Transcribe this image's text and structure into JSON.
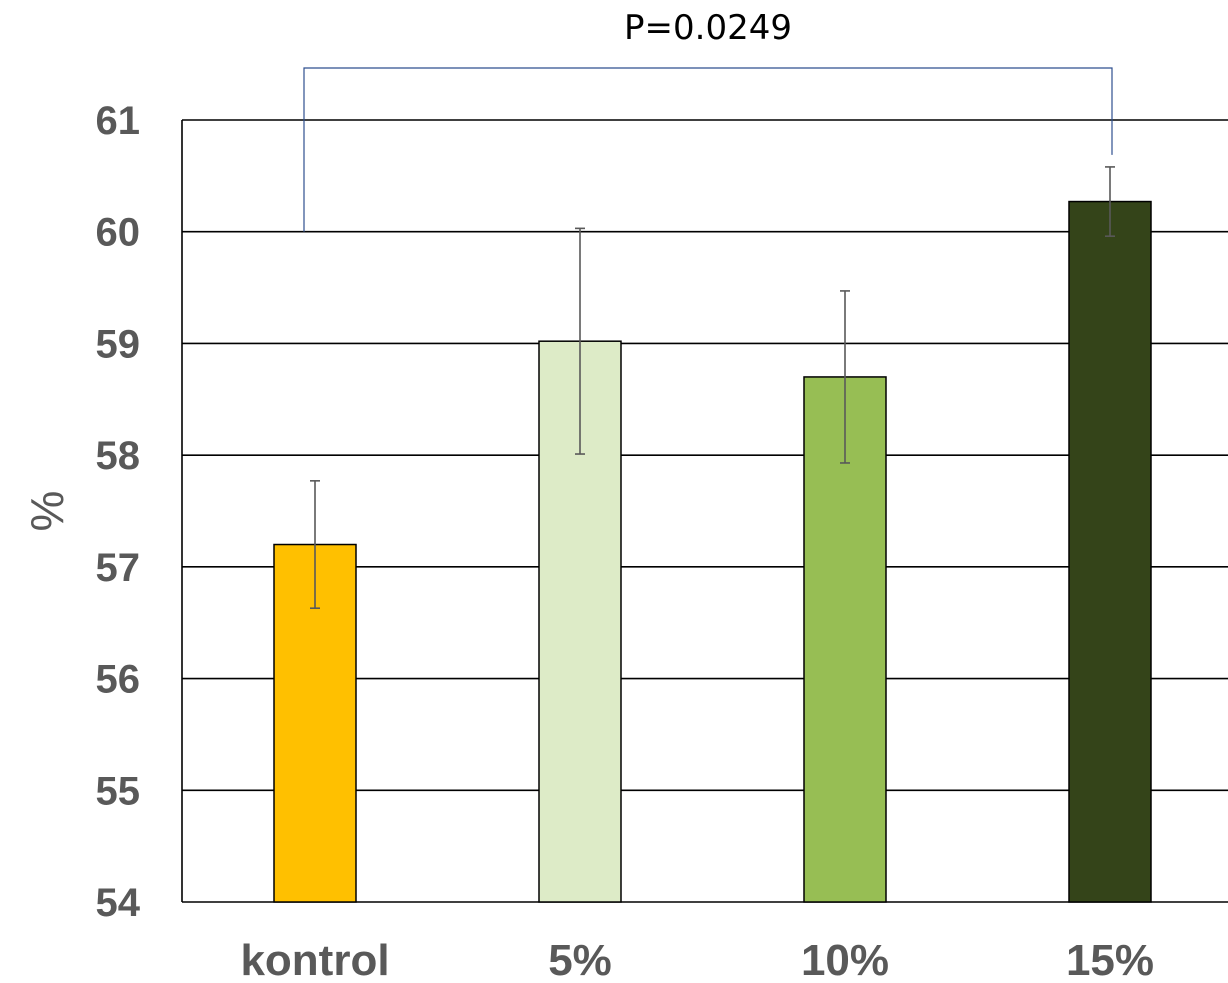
{
  "chart_data": {
    "type": "bar",
    "categories": [
      "kontrol",
      "5%",
      "10%",
      "15%"
    ],
    "values": [
      57.2,
      59.02,
      58.7,
      60.27
    ],
    "error": [
      0.57,
      1.01,
      0.77,
      0.31
    ],
    "colors": [
      "#FFC000",
      "#DDEBC7",
      "#97BE54",
      "#344419"
    ],
    "ylabel": "%",
    "ylim": [
      54,
      61
    ],
    "yticks": [
      "54",
      "55",
      "56",
      "57",
      "58",
      "59",
      "60",
      "61"
    ],
    "grid": true,
    "annotation": {
      "text": "P=0.0249",
      "from_category": "kontrol",
      "to_category": "15%",
      "bracket_color": "#2F4F8F"
    }
  }
}
